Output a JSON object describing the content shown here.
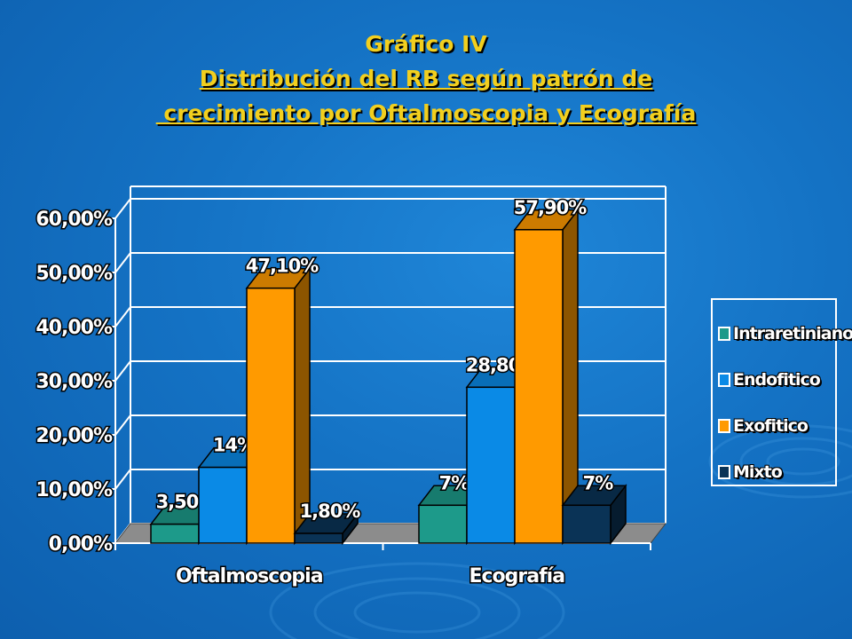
{
  "title": {
    "line1": "Gráfico IV",
    "line2": "Distribución del RB según patrón de",
    "line3": " crecimiento por Oftalmoscopia y Ecografía"
  },
  "chart_data": {
    "type": "bar",
    "categories": [
      "Oftalmoscopia",
      "Ecografía"
    ],
    "series": [
      {
        "name": "Intraretiniano",
        "values": [
          3.5,
          7
        ],
        "labels": [
          "3,50%",
          "7%"
        ],
        "color": "#1d9a8a"
      },
      {
        "name": "Endofitico",
        "values": [
          14,
          28.8
        ],
        "labels": [
          "14%",
          "28,80%"
        ],
        "color": "#0a8ae6"
      },
      {
        "name": "Exofitico",
        "values": [
          47.1,
          57.9
        ],
        "labels": [
          "47,10%",
          "57,90%"
        ],
        "color": "#ff9a00"
      },
      {
        "name": "Mixto",
        "values": [
          1.8,
          7
        ],
        "labels": [
          "1,80%",
          "7%"
        ],
        "color": "#0a3356"
      }
    ],
    "yticks": [
      "0,00%",
      "10,00%",
      "20,00%",
      "30,00%",
      "40,00%",
      "50,00%",
      "60,00%"
    ],
    "ylim": [
      0,
      60
    ],
    "grid": true,
    "legend": "right"
  },
  "legend_labels": [
    "Intraretiniano",
    "Endofitico",
    "Exofitico",
    "Mixto"
  ],
  "colors": {
    "title": "#f2cf1e",
    "floor": "#8c8c8c",
    "background": "#1472c4"
  }
}
